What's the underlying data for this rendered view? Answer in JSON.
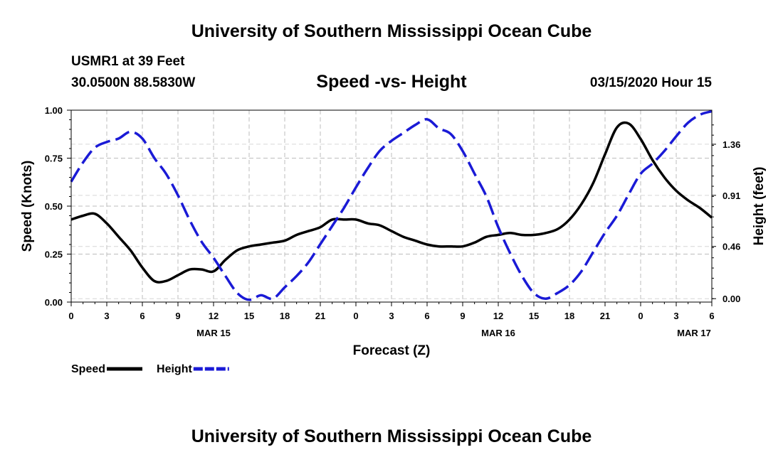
{
  "header": {
    "title": "University of Southern Mississippi Ocean Cube",
    "station": "USMR1 at 39 Feet",
    "coordinates": "30.0500N 88.5830W",
    "subtitle": "Speed -vs- Height",
    "datetime": "03/15/2020 Hour 15"
  },
  "footer": {
    "title": "University of Southern Mississippi Ocean Cube"
  },
  "chart_data": {
    "type": "line",
    "title": "Speed -vs- Height",
    "xlabel": "Forecast (Z)",
    "ylabel": "Speed (Knots)",
    "y2label": "Height (feet)",
    "grid": true,
    "xlim": [
      0,
      54
    ],
    "ylim": [
      0,
      1
    ],
    "y2lim": [
      -0.03,
      1.66
    ],
    "x_tick_positions": [
      0,
      3,
      6,
      9,
      12,
      15,
      18,
      21,
      24,
      27,
      30,
      33,
      36,
      39,
      42,
      45,
      48,
      51,
      54
    ],
    "x_tick_labels": [
      "0",
      "3",
      "6",
      "9",
      "12",
      "15",
      "18",
      "21",
      "0",
      "3",
      "6",
      "9",
      "12",
      "15",
      "18",
      "21",
      "0",
      "3",
      "6"
    ],
    "date_labels": [
      {
        "x": 12,
        "label": "MAR 15"
      },
      {
        "x": 36,
        "label": "MAR 16"
      },
      {
        "x": 52.5,
        "label": "MAR 17"
      }
    ],
    "y_ticks": [
      0.0,
      0.25,
      0.5,
      0.75,
      1.0
    ],
    "y_tick_labels": [
      "0.00",
      "0.25",
      "0.50",
      "0.75",
      "1.00"
    ],
    "y2_ticks": [
      0.0,
      0.46,
      0.91,
      1.36
    ],
    "y2_tick_labels": [
      "0.00",
      "0.46",
      "0.91",
      "1.36"
    ],
    "legend": {
      "position": "bottom-left"
    },
    "series": [
      {
        "name": "Speed",
        "axis": "left",
        "color": "#000000",
        "style": "solid",
        "x": [
          0,
          1,
          2,
          3,
          4,
          5,
          6,
          7,
          8,
          9,
          10,
          11,
          12,
          13,
          14,
          15,
          16,
          17,
          18,
          19,
          20,
          21,
          22,
          23,
          24,
          25,
          26,
          27,
          28,
          29,
          30,
          31,
          32,
          33,
          34,
          35,
          36,
          37,
          38,
          39,
          40,
          41,
          42,
          43,
          44,
          45,
          46,
          47,
          48,
          49,
          50,
          51,
          52,
          53,
          54
        ],
        "values": [
          0.43,
          0.45,
          0.46,
          0.41,
          0.34,
          0.27,
          0.18,
          0.11,
          0.11,
          0.14,
          0.17,
          0.17,
          0.16,
          0.22,
          0.27,
          0.29,
          0.3,
          0.31,
          0.32,
          0.35,
          0.37,
          0.39,
          0.43,
          0.43,
          0.43,
          0.41,
          0.4,
          0.37,
          0.34,
          0.32,
          0.3,
          0.29,
          0.29,
          0.29,
          0.31,
          0.34,
          0.35,
          0.36,
          0.35,
          0.35,
          0.36,
          0.38,
          0.43,
          0.51,
          0.62,
          0.77,
          0.91,
          0.93,
          0.85,
          0.74,
          0.65,
          0.58,
          0.53,
          0.49,
          0.44
        ]
      },
      {
        "name": "Height",
        "axis": "right",
        "color": "#1a1ad6",
        "style": "dashed",
        "x": [
          0,
          1,
          2,
          3,
          4,
          5,
          6,
          7,
          8,
          9,
          10,
          11,
          12,
          13,
          14,
          15,
          16,
          17,
          18,
          19,
          20,
          21,
          22,
          23,
          24,
          25,
          26,
          27,
          28,
          29,
          30,
          31,
          32,
          33,
          34,
          35,
          36,
          37,
          38,
          39,
          40,
          41,
          42,
          43,
          44,
          45,
          46,
          47,
          48,
          49,
          50,
          51,
          52,
          53,
          54
        ],
        "values": [
          1.03,
          1.2,
          1.33,
          1.38,
          1.41,
          1.47,
          1.41,
          1.24,
          1.1,
          0.91,
          0.69,
          0.5,
          0.36,
          0.2,
          0.05,
          -0.01,
          0.03,
          0.0,
          0.1,
          0.2,
          0.32,
          0.48,
          0.64,
          0.8,
          0.98,
          1.15,
          1.3,
          1.39,
          1.46,
          1.53,
          1.58,
          1.5,
          1.45,
          1.3,
          1.1,
          0.9,
          0.63,
          0.4,
          0.2,
          0.05,
          0.0,
          0.05,
          0.12,
          0.24,
          0.41,
          0.58,
          0.73,
          0.92,
          1.1,
          1.19,
          1.3,
          1.43,
          1.55,
          1.62,
          1.65
        ]
      }
    ]
  }
}
